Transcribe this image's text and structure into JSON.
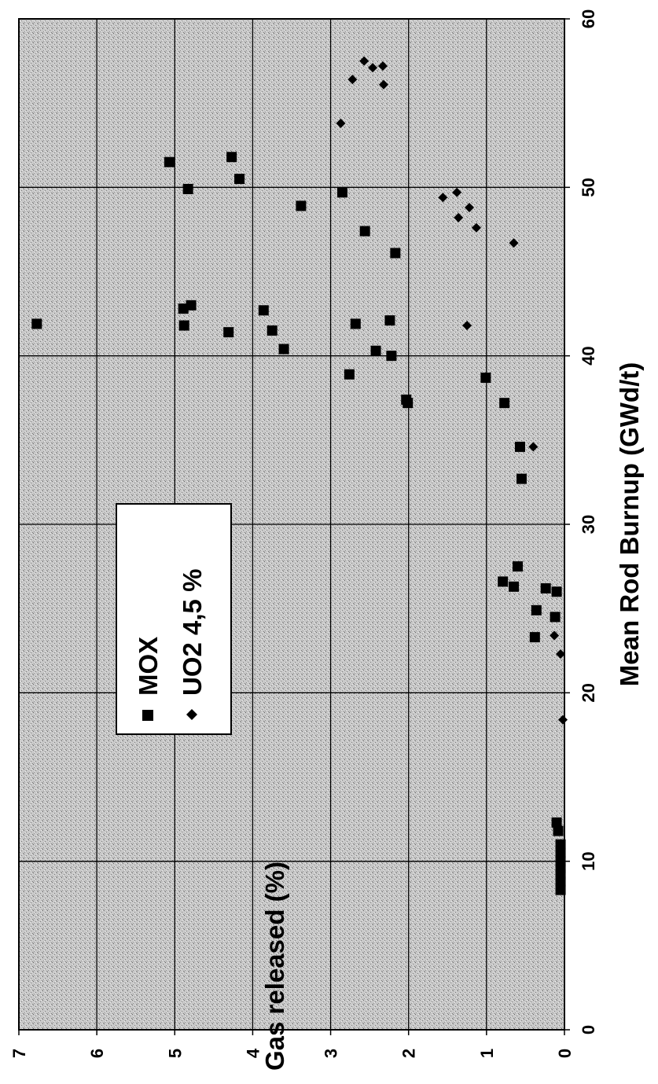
{
  "chart_data": {
    "type": "scatter",
    "title": "",
    "xlabel": "Mean Rod Burnup (GWd/t)",
    "ylabel": "Gas released (%)",
    "xlim": [
      0,
      60
    ],
    "ylim": [
      0,
      7
    ],
    "x_ticks": [
      "0",
      "10",
      "20",
      "30",
      "40",
      "50",
      "60"
    ],
    "y_ticks": [
      "0",
      "1",
      "2",
      "3",
      "4",
      "5",
      "6",
      "7"
    ],
    "grid": true,
    "orientation": "rotated-90-clockwise",
    "legend": {
      "position": "inside-lower-left"
    },
    "series": [
      {
        "name": "MOX",
        "marker": "square",
        "points": [
          [
            8.3,
            0.05
          ],
          [
            8.8,
            0.05
          ],
          [
            9.2,
            0.05
          ],
          [
            9.6,
            0.05
          ],
          [
            10.0,
            0.05
          ],
          [
            10.5,
            0.05
          ],
          [
            11.0,
            0.05
          ],
          [
            11.8,
            0.08
          ],
          [
            12.3,
            0.1
          ],
          [
            23.3,
            0.38
          ],
          [
            24.5,
            0.12
          ],
          [
            24.9,
            0.36
          ],
          [
            26.0,
            0.1
          ],
          [
            26.2,
            0.24
          ],
          [
            26.3,
            0.65
          ],
          [
            26.6,
            0.79
          ],
          [
            27.5,
            0.6
          ],
          [
            32.7,
            0.55
          ],
          [
            34.6,
            0.57
          ],
          [
            37.2,
            2.01
          ],
          [
            37.4,
            2.03
          ],
          [
            37.2,
            0.77
          ],
          [
            38.7,
            1.01
          ],
          [
            38.9,
            2.76
          ],
          [
            40.0,
            2.22
          ],
          [
            40.3,
            2.42
          ],
          [
            40.4,
            3.6
          ],
          [
            41.4,
            4.31
          ],
          [
            41.5,
            3.75
          ],
          [
            41.8,
            4.88
          ],
          [
            41.9,
            6.77
          ],
          [
            41.9,
            2.68
          ],
          [
            42.1,
            2.24
          ],
          [
            42.7,
            3.86
          ],
          [
            42.8,
            4.89
          ],
          [
            43.0,
            4.79
          ],
          [
            46.1,
            2.17
          ],
          [
            47.4,
            2.56
          ],
          [
            48.9,
            3.38
          ],
          [
            49.7,
            2.85
          ],
          [
            49.9,
            4.83
          ],
          [
            50.5,
            4.17
          ],
          [
            51.5,
            5.07
          ],
          [
            51.8,
            4.27
          ]
        ]
      },
      {
        "name": "UO2 4,5 %",
        "marker": "diamond",
        "points": [
          [
            18.4,
            0.02
          ],
          [
            22.3,
            0.05
          ],
          [
            23.4,
            0.13
          ],
          [
            34.6,
            0.4
          ],
          [
            41.8,
            1.25
          ],
          [
            46.7,
            0.65
          ],
          [
            47.6,
            1.13
          ],
          [
            48.2,
            1.36
          ],
          [
            48.8,
            1.22
          ],
          [
            49.4,
            1.56
          ],
          [
            49.7,
            1.38
          ],
          [
            53.8,
            2.87
          ],
          [
            56.1,
            2.32
          ],
          [
            56.4,
            2.72
          ],
          [
            57.1,
            2.46
          ],
          [
            57.2,
            2.33
          ],
          [
            57.5,
            2.57
          ]
        ]
      }
    ]
  }
}
